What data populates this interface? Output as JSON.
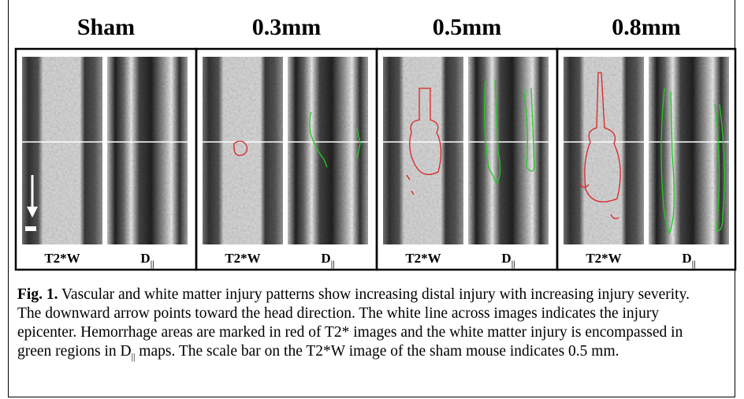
{
  "panels": [
    {
      "title": "Sham",
      "images": [
        {
          "label": "T2*W"
        },
        {
          "label": {
            "main": "D",
            "sub": "||"
          }
        }
      ]
    },
    {
      "title": "0.3mm",
      "images": [
        {
          "label": "T2*W"
        },
        {
          "label": {
            "main": "D",
            "sub": "||"
          }
        }
      ]
    },
    {
      "title": "0.5mm",
      "images": [
        {
          "label": "T2*W"
        },
        {
          "label": {
            "main": "D",
            "sub": "||"
          }
        }
      ]
    },
    {
      "title": "0.8mm",
      "images": [
        {
          "label": "T2*W"
        },
        {
          "label": {
            "main": "D",
            "sub": "||"
          }
        }
      ]
    }
  ],
  "caption": {
    "label": "Fig. 1.",
    "text_1": "Vascular and white matter injury patterns show increasing distal injury with increasing injury severity. The downward arrow points toward the head direction. The white line across images indicates the injury epicenter. Hemorrhage areas are marked in red of T2* images and the white matter injury is encompassed in green regions in D",
    "sub": "||",
    "text_2": " maps. The scale bar on the T2*W image of the sham mouse indicates 0.5 mm."
  }
}
